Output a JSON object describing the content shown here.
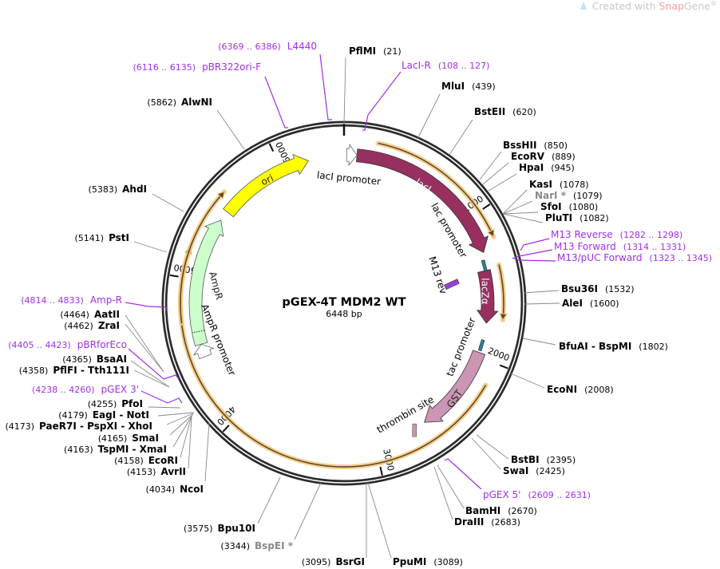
{
  "watermark": {
    "prefix": "Created with ",
    "brand": "Snap",
    "brand2": "Gene",
    "mark": "®"
  },
  "plasmid": {
    "name": "pGEX-4T MDM2 WT",
    "length_label": "6448 bp",
    "length": 6448
  },
  "colors": {
    "backbone": "#2b2b2b",
    "lacI": "#98305f",
    "lacZ": "#98305f",
    "GST": "#cc95b4",
    "ori": "#ffff00",
    "AmpR": "#ccffcc",
    "orf": "#f7c77a",
    "primer": "#a12fe8",
    "promoter": "#ffffff",
    "gray_site": "#8a8a8a"
  },
  "tick_marks": [
    {
      "label": "1000",
      "bp": 1000
    },
    {
      "label": "2000",
      "bp": 2000
    },
    {
      "label": "3000",
      "bp": 3000
    },
    {
      "label": "4000",
      "bp": 4000
    },
    {
      "label": "5000",
      "bp": 5000
    },
    {
      "label": "6000",
      "bp": 6000
    }
  ],
  "features": [
    {
      "name": "lacI",
      "type": "cds",
      "label": "lacI",
      "color": "#98305f"
    },
    {
      "name": "lacZα",
      "type": "cds",
      "label": "lacZα",
      "color": "#98305f"
    },
    {
      "name": "GST",
      "type": "cds",
      "label": "GST",
      "color": "#cc95b4"
    },
    {
      "name": "ori",
      "type": "rep_origin",
      "label": "ori",
      "color": "#ffff00"
    },
    {
      "name": "AmpR",
      "type": "cds",
      "label": "AmpR",
      "color": "#ccffcc"
    },
    {
      "name": "lacI promoter",
      "type": "promoter",
      "label": "lacI promoter"
    },
    {
      "name": "lac promoter",
      "type": "promoter",
      "label": "lac promoter"
    },
    {
      "name": "tac promoter",
      "type": "promoter",
      "label": "tac promoter"
    },
    {
      "name": "AmpR promoter",
      "type": "promoter",
      "label": "AmpR promoter"
    },
    {
      "name": "M13 rev",
      "type": "primer_bind",
      "label": "M13 rev"
    },
    {
      "name": "thrombin site",
      "type": "misc",
      "label": "thrombin site"
    }
  ],
  "restriction_sites": [
    {
      "name": "PflMI",
      "pos": "(21)"
    },
    {
      "name": "MluI",
      "pos": "(439)"
    },
    {
      "name": "BstEII",
      "pos": "(620)"
    },
    {
      "name": "BssHII",
      "pos": "(850)"
    },
    {
      "name": "EcoRV",
      "pos": "(889)"
    },
    {
      "name": "HpaI",
      "pos": "(945)"
    },
    {
      "name": "KasI",
      "pos": "(1078)"
    },
    {
      "name": "NarI *",
      "pos": "(1079)",
      "gray": true
    },
    {
      "name": "SfoI",
      "pos": "(1080)"
    },
    {
      "name": "PluTI",
      "pos": "(1082)"
    },
    {
      "name": "Bsu36I",
      "pos": "(1532)"
    },
    {
      "name": "AleI",
      "pos": "(1600)"
    },
    {
      "name": "BfuAI - BspMI",
      "pos": "(1802)"
    },
    {
      "name": "EcoNI",
      "pos": "(2008)"
    },
    {
      "name": "BstBI",
      "pos": "(2395)"
    },
    {
      "name": "SwaI",
      "pos": "(2425)"
    },
    {
      "name": "BamHI",
      "pos": "(2670)"
    },
    {
      "name": "DraIII",
      "pos": "(2683)"
    },
    {
      "name": "PpuMI",
      "pos": "(3089)"
    },
    {
      "name": "BsrGI",
      "pos": "(3095)"
    },
    {
      "name": "BspEI *",
      "pos": "(3344)",
      "gray": true
    },
    {
      "name": "Bpu10I",
      "pos": "(3575)"
    },
    {
      "name": "NcoI",
      "pos": "(4034)"
    },
    {
      "name": "AvrII",
      "pos": "(4153)"
    },
    {
      "name": "EcoRI",
      "pos": "(4158)"
    },
    {
      "name": "TspMI - XmaI",
      "pos": "(4163)"
    },
    {
      "name": "SmaI",
      "pos": "(4165)"
    },
    {
      "name": "PaeR7I - PspXI - XhoI",
      "pos": "(4173)"
    },
    {
      "name": "EagI - NotI",
      "pos": "(4179)"
    },
    {
      "name": "PfoI",
      "pos": "(4255)"
    },
    {
      "name": "PflFI - Tth111I",
      "pos": "(4358)"
    },
    {
      "name": "BsaAI",
      "pos": "(4365)"
    },
    {
      "name": "ZraI",
      "pos": "(4462)"
    },
    {
      "name": "AatII",
      "pos": "(4464)"
    },
    {
      "name": "PstI",
      "pos": "(5141)"
    },
    {
      "name": "AhdI",
      "pos": "(5383)"
    },
    {
      "name": "AlwNI",
      "pos": "(5862)"
    }
  ],
  "primers": [
    {
      "name": "L4440",
      "range": "(6369 .. 6386)"
    },
    {
      "name": "pBR322ori-F",
      "range": "(6116 .. 6135)"
    },
    {
      "name": "LacI-R",
      "range": "(108 .. 127)"
    },
    {
      "name": "M13 Reverse",
      "range": "(1282 .. 1298)"
    },
    {
      "name": "M13 Forward",
      "range": "(1314 .. 1331)"
    },
    {
      "name": "M13/pUC Forward",
      "range": "(1323 .. 1345)"
    },
    {
      "name": "pGEX 5'",
      "range": "(2609 .. 2631)"
    },
    {
      "name": "pGEX 3'",
      "range": "(4238 .. 4260)"
    },
    {
      "name": "pBRforEco",
      "range": "(4405 .. 4423)"
    },
    {
      "name": "Amp-R",
      "range": "(4814 .. 4833)"
    }
  ]
}
